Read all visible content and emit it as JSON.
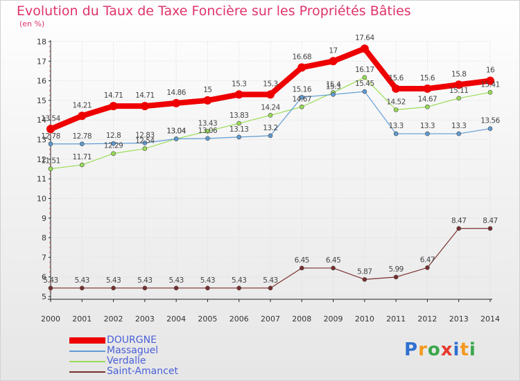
{
  "chart_data": {
    "type": "line",
    "title": "Evolution du Taux de Taxe Foncière sur les Propriétés Bâties",
    "subtitle": "(en %)",
    "x": [
      "2000",
      "2001",
      "2002",
      "2003",
      "2004",
      "2005",
      "2006",
      "2007",
      "2008",
      "2009",
      "2010",
      "2011",
      "2012",
      "2013",
      "2014"
    ],
    "ylim": [
      5,
      18
    ],
    "yticks": [
      "5",
      "6",
      "7",
      "8",
      "9",
      "10",
      "11",
      "12",
      "13",
      "14",
      "15",
      "16",
      "17",
      "18"
    ],
    "series": [
      {
        "name": "DOURGNE",
        "color": "#ee0000",
        "values": [
          13.54,
          14.21,
          14.71,
          14.71,
          14.86,
          15,
          15.3,
          15.3,
          16.68,
          17,
          17.64,
          15.6,
          15.6,
          15.8,
          16
        ],
        "labels": [
          "13.54",
          "14.21",
          "14.71",
          "14.71",
          "14.86",
          "15",
          "15.3",
          "15.3",
          "16.68",
          "17",
          "17.64",
          "15.6",
          "15.6",
          "15.8",
          "16"
        ]
      },
      {
        "name": "Massaguel",
        "color": "#5e9bd3",
        "values": [
          12.78,
          12.78,
          12.8,
          12.83,
          13.04,
          13.06,
          13.13,
          13.2,
          15.16,
          15.3,
          15.45,
          13.3,
          13.3,
          13.3,
          13.56
        ],
        "labels": [
          "12.78",
          "12.78",
          "12.8",
          "12.83",
          "13.04",
          "13.06",
          "13.13",
          "13.2",
          "15.16",
          "15.3",
          "15.45",
          "13.3",
          "13.3",
          "13.3",
          "13.56"
        ]
      },
      {
        "name": "Verdalle",
        "color": "#99dd55",
        "values": [
          11.51,
          11.71,
          12.29,
          12.54,
          13.04,
          13.43,
          13.83,
          14.24,
          14.67,
          15.4,
          16.17,
          14.52,
          14.67,
          15.11,
          15.41
        ],
        "labels": [
          "11.51",
          "11.71",
          "12.29",
          "12.54",
          "13.04",
          "13.43",
          "13.83",
          "14.24",
          "14.67",
          "15.4",
          "16.17",
          "14.52",
          "14.67",
          "15.11",
          "15.41"
        ]
      },
      {
        "name": "Saint-Amancet",
        "color": "#7a2e2e",
        "values": [
          5.43,
          5.43,
          5.43,
          5.43,
          5.43,
          5.43,
          5.43,
          5.43,
          6.45,
          6.45,
          5.87,
          5.99,
          6.47,
          8.47,
          8.47
        ],
        "labels": [
          "5.43",
          "5.43",
          "5.43",
          "5.43",
          "5.43",
          "5.43",
          "5.43",
          "5.43",
          "6.45",
          "6.45",
          "5.87",
          "5.99",
          "6.47",
          "8.47",
          "8.47"
        ]
      }
    ],
    "legend": [
      "DOURGNE",
      "Massaguel",
      "Verdalle",
      "Saint-Amancet"
    ]
  },
  "brand": {
    "letters": [
      "P",
      "r",
      "o",
      "x",
      "i",
      "t",
      "i"
    ],
    "colors": [
      "#2f6fd0",
      "#f39a1f",
      "#3aa64b",
      "#e63b2e",
      "#2f6fd0",
      "#f39a1f",
      "#3aa64b"
    ]
  }
}
